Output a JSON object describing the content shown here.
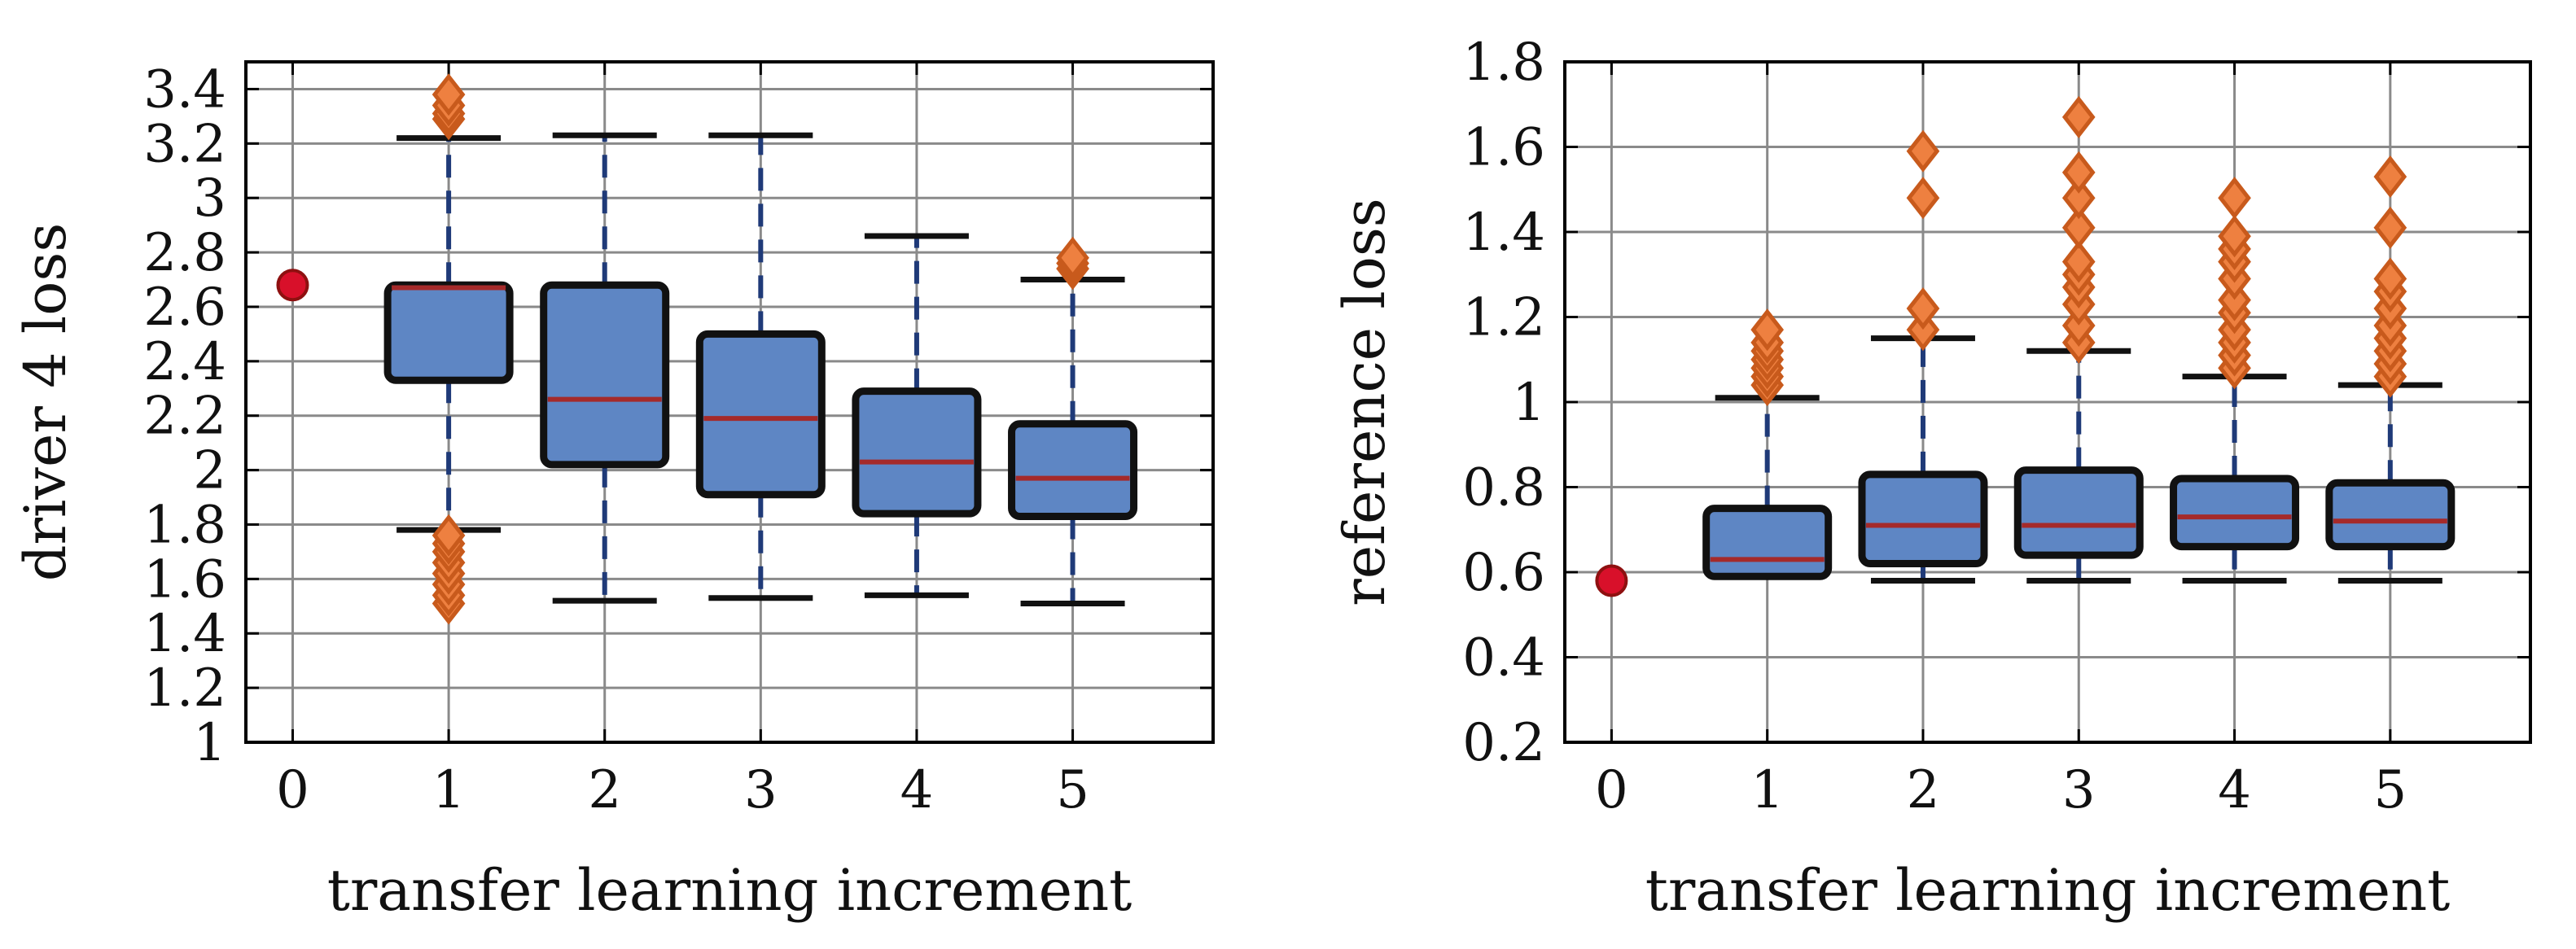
{
  "colors": {
    "box_fill": "#5e86c4",
    "box_edge": "#111111",
    "median": "#a52a2a",
    "whisker": "#1f3a78",
    "cap": "#111111",
    "outlier_fill": "#ee8040",
    "outlier_edge": "#c85a1c",
    "baseline_point": "#d8102a"
  },
  "chart_data": [
    {
      "type": "box",
      "title": "",
      "xlabel": "transfer learning increment",
      "ylabel": "driver 4 loss",
      "categories": [
        "0",
        "1",
        "2",
        "3",
        "4",
        "5"
      ],
      "xlim": [
        -0.3,
        5.9
      ],
      "ylim": [
        1,
        3.5
      ],
      "yticks": [
        1,
        1.2,
        1.4,
        1.6,
        1.8,
        2,
        2.2,
        2.4,
        2.6,
        2.8,
        3,
        3.2,
        3.4
      ],
      "ytick_labels": [
        "1",
        "1.2",
        "1.4",
        "1.6",
        "1.8",
        "2",
        "2.2",
        "2.4",
        "2.6",
        "2.8",
        "3",
        "3.2",
        "3.4"
      ],
      "grid": true,
      "baseline_point": {
        "x": 0,
        "y": 2.68
      },
      "boxes": [
        {
          "x": 1,
          "whisker_low": 1.78,
          "q1": 2.33,
          "median": 2.67,
          "q3": 2.68,
          "whisker_high": 3.22,
          "outliers": [
            1.51,
            1.54,
            1.58,
            1.62,
            1.66,
            1.7,
            1.73,
            1.76,
            3.29,
            3.31,
            3.34,
            3.38
          ]
        },
        {
          "x": 2,
          "whisker_low": 1.52,
          "q1": 2.02,
          "median": 2.26,
          "q3": 2.68,
          "whisker_high": 3.23,
          "outliers": []
        },
        {
          "x": 3,
          "whisker_low": 1.53,
          "q1": 1.91,
          "median": 2.19,
          "q3": 2.5,
          "whisker_high": 3.23,
          "outliers": []
        },
        {
          "x": 4,
          "whisker_low": 1.54,
          "q1": 1.84,
          "median": 2.03,
          "q3": 2.29,
          "whisker_high": 2.86,
          "outliers": []
        },
        {
          "x": 5,
          "whisker_low": 1.51,
          "q1": 1.83,
          "median": 1.97,
          "q3": 2.17,
          "whisker_high": 2.7,
          "outliers": [
            2.74,
            2.76,
            2.78
          ]
        }
      ]
    },
    {
      "type": "box",
      "title": "",
      "xlabel": "transfer learning increment",
      "ylabel": "reference loss",
      "categories": [
        "0",
        "1",
        "2",
        "3",
        "4",
        "5"
      ],
      "xlim": [
        -0.3,
        5.9
      ],
      "ylim": [
        0.2,
        1.8
      ],
      "yticks": [
        0.2,
        0.4,
        0.6,
        0.8,
        1.0,
        1.2,
        1.4,
        1.6,
        1.8
      ],
      "ytick_labels": [
        "0.2",
        "0.4",
        "0.6",
        "0.8",
        "1",
        "1.2",
        "1.4",
        "1.6",
        "1.8"
      ],
      "grid": true,
      "baseline_point": {
        "x": 0,
        "y": 0.58
      },
      "boxes": [
        {
          "x": 1,
          "whisker_low": 0.59,
          "q1": 0.59,
          "median": 0.63,
          "q3": 0.75,
          "whisker_high": 1.01,
          "outliers": [
            1.04,
            1.06,
            1.08,
            1.1,
            1.12,
            1.14,
            1.17
          ]
        },
        {
          "x": 2,
          "whisker_low": 0.58,
          "q1": 0.62,
          "median": 0.71,
          "q3": 0.83,
          "whisker_high": 1.15,
          "outliers": [
            1.17,
            1.22,
            1.48,
            1.59
          ]
        },
        {
          "x": 3,
          "whisker_low": 0.58,
          "q1": 0.64,
          "median": 0.71,
          "q3": 0.84,
          "whisker_high": 1.12,
          "outliers": [
            1.14,
            1.18,
            1.23,
            1.27,
            1.3,
            1.33,
            1.41,
            1.48,
            1.54,
            1.67
          ]
        },
        {
          "x": 4,
          "whisker_low": 0.58,
          "q1": 0.66,
          "median": 0.73,
          "q3": 0.82,
          "whisker_high": 1.06,
          "outliers": [
            1.08,
            1.11,
            1.14,
            1.17,
            1.21,
            1.24,
            1.29,
            1.33,
            1.36,
            1.39,
            1.48
          ]
        },
        {
          "x": 5,
          "whisker_low": 0.58,
          "q1": 0.66,
          "median": 0.72,
          "q3": 0.81,
          "whisker_high": 1.04,
          "outliers": [
            1.06,
            1.09,
            1.12,
            1.15,
            1.18,
            1.22,
            1.26,
            1.29,
            1.41,
            1.53
          ]
        }
      ]
    }
  ]
}
